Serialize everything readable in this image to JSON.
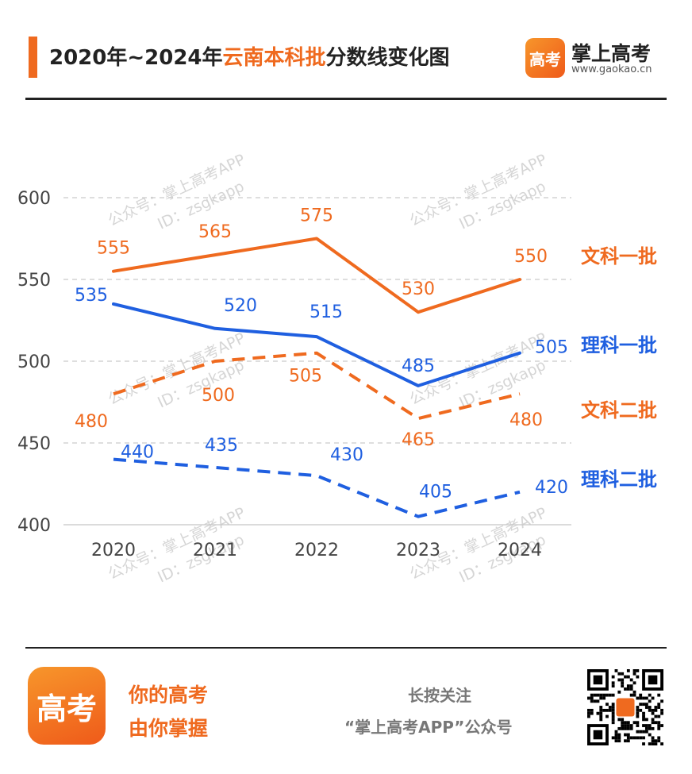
{
  "header": {
    "title_prefix": "2020年~2024年",
    "title_highlight": "云南本科批",
    "title_suffix": "分数线变化图",
    "brand_icon_text": "高考",
    "brand_name": "掌上高考",
    "brand_url": "www.gaokao.cn"
  },
  "watermark": {
    "line1": "公众号：掌上高考APP",
    "line2": "ID：zsgkapp"
  },
  "chart_data": {
    "type": "line",
    "categories": [
      "2020",
      "2021",
      "2022",
      "2023",
      "2024"
    ],
    "ylim": [
      400,
      600
    ],
    "yticks": [
      "400",
      "450",
      "500",
      "550",
      "600"
    ],
    "grid": true,
    "legend_position": "right",
    "series": [
      {
        "name": "文科一批",
        "values": [
          555,
          565,
          575,
          530,
          550
        ],
        "color": "#ef6a1f",
        "dashed": false
      },
      {
        "name": "理科一批",
        "values": [
          535,
          520,
          515,
          485,
          505
        ],
        "color": "#1f5fe0",
        "dashed": false
      },
      {
        "name": "文科二批",
        "values": [
          480,
          500,
          505,
          465,
          480
        ],
        "color": "#ef6a1f",
        "dashed": true
      },
      {
        "name": "理科二批",
        "values": [
          440,
          435,
          430,
          405,
          420
        ],
        "color": "#1f5fe0",
        "dashed": true
      }
    ]
  },
  "footer": {
    "icon_text": "高考",
    "slogan_line1": "你的高考",
    "slogan_line2": "由你掌握",
    "follow_line1": "长按关注",
    "follow_line2": "“掌上高考APP”公众号"
  }
}
